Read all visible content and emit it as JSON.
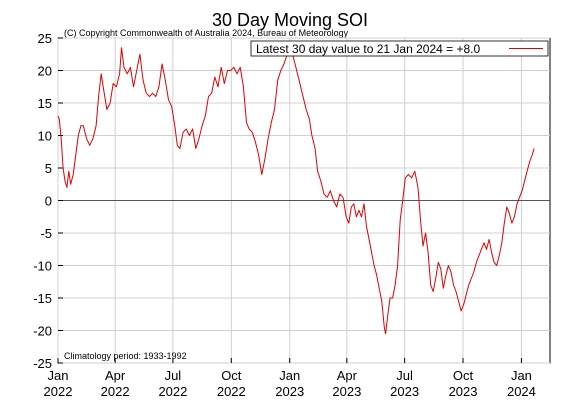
{
  "chart_data": {
    "type": "line",
    "title": "30 Day Moving SOI",
    "copyright": "(C) Copyright Commonwealth of Australia 2024, Bureau of Meteorology",
    "legend_label": "Latest 30 day value to 21 Jan 2024 = +8.0",
    "legend_position": "top-right",
    "footnote": "Climatology period: 1933-1992",
    "grid": true,
    "xlabel": "",
    "ylabel": "",
    "ylim": [
      -25,
      25
    ],
    "yticks": [
      "25",
      "20",
      "15",
      "10",
      "5",
      "0",
      "-5",
      "-10",
      "-15",
      "-20",
      "-25"
    ],
    "xlim": [
      "2022-01-01",
      "2024-02-15"
    ],
    "xticks": [
      {
        "date": "2022-01-01",
        "month": "Jan",
        "year": "2022"
      },
      {
        "date": "2022-04-01",
        "month": "Apr",
        "year": "2022"
      },
      {
        "date": "2022-07-01",
        "month": "Jul",
        "year": "2022"
      },
      {
        "date": "2022-10-01",
        "month": "Oct",
        "year": "2022"
      },
      {
        "date": "2023-01-01",
        "month": "Jan",
        "year": "2023"
      },
      {
        "date": "2023-04-01",
        "month": "Apr",
        "year": "2023"
      },
      {
        "date": "2023-07-01",
        "month": "Jul",
        "year": "2023"
      },
      {
        "date": "2023-10-01",
        "month": "Oct",
        "year": "2023"
      },
      {
        "date": "2024-01-01",
        "month": "Jan",
        "year": "2024"
      }
    ],
    "series": [
      {
        "color": "#e00000",
        "points": [
          [
            "2022-01-01",
            13.0
          ],
          [
            "2022-01-03",
            12.5
          ],
          [
            "2022-01-06",
            9.5
          ],
          [
            "2022-01-09",
            5.0
          ],
          [
            "2022-01-12",
            3.0
          ],
          [
            "2022-01-15",
            2.0
          ],
          [
            "2022-01-18",
            4.5
          ],
          [
            "2022-01-21",
            2.5
          ],
          [
            "2022-01-25",
            4.0
          ],
          [
            "2022-01-29",
            7.0
          ],
          [
            "2022-02-02",
            10.0
          ],
          [
            "2022-02-06",
            11.5
          ],
          [
            "2022-02-10",
            11.5
          ],
          [
            "2022-02-15",
            9.5
          ],
          [
            "2022-02-20",
            8.5
          ],
          [
            "2022-02-25",
            9.5
          ],
          [
            "2022-03-02",
            11.5
          ],
          [
            "2022-03-06",
            16.0
          ],
          [
            "2022-03-10",
            19.5
          ],
          [
            "2022-03-14",
            17.0
          ],
          [
            "2022-03-19",
            14.0
          ],
          [
            "2022-03-24",
            15.0
          ],
          [
            "2022-03-29",
            18.0
          ],
          [
            "2022-04-03",
            17.5
          ],
          [
            "2022-04-08",
            19.5
          ],
          [
            "2022-04-11",
            23.5
          ],
          [
            "2022-04-15",
            20.5
          ],
          [
            "2022-04-20",
            19.5
          ],
          [
            "2022-04-25",
            20.5
          ],
          [
            "2022-04-30",
            17.5
          ],
          [
            "2022-05-05",
            20.0
          ],
          [
            "2022-05-10",
            22.5
          ],
          [
            "2022-05-15",
            18.5
          ],
          [
            "2022-05-20",
            16.5
          ],
          [
            "2022-05-25",
            16.0
          ],
          [
            "2022-05-30",
            16.5
          ],
          [
            "2022-06-04",
            16.0
          ],
          [
            "2022-06-09",
            17.5
          ],
          [
            "2022-06-14",
            21.0
          ],
          [
            "2022-06-19",
            18.5
          ],
          [
            "2022-06-24",
            15.5
          ],
          [
            "2022-06-29",
            14.5
          ],
          [
            "2022-07-04",
            11.5
          ],
          [
            "2022-07-08",
            8.5
          ],
          [
            "2022-07-12",
            8.0
          ],
          [
            "2022-07-17",
            10.5
          ],
          [
            "2022-07-22",
            11.0
          ],
          [
            "2022-07-27",
            10.0
          ],
          [
            "2022-08-01",
            11.0
          ],
          [
            "2022-08-06",
            8.0
          ],
          [
            "2022-08-11",
            9.5
          ],
          [
            "2022-08-16",
            11.5
          ],
          [
            "2022-08-21",
            13.0
          ],
          [
            "2022-08-26",
            16.0
          ],
          [
            "2022-08-31",
            16.5
          ],
          [
            "2022-09-05",
            19.0
          ],
          [
            "2022-09-10",
            17.5
          ],
          [
            "2022-09-15",
            20.5
          ],
          [
            "2022-09-20",
            18.0
          ],
          [
            "2022-09-25",
            20.0
          ],
          [
            "2022-09-30",
            20.0
          ],
          [
            "2022-10-05",
            20.5
          ],
          [
            "2022-10-10",
            19.5
          ],
          [
            "2022-10-15",
            20.5
          ],
          [
            "2022-10-20",
            17.5
          ],
          [
            "2022-10-25",
            12.0
          ],
          [
            "2022-10-29",
            11.0
          ],
          [
            "2022-11-03",
            10.5
          ],
          [
            "2022-11-08",
            9.0
          ],
          [
            "2022-11-13",
            7.0
          ],
          [
            "2022-11-18",
            4.0
          ],
          [
            "2022-11-23",
            6.5
          ],
          [
            "2022-11-28",
            9.5
          ],
          [
            "2022-12-03",
            12.0
          ],
          [
            "2022-12-08",
            14.0
          ],
          [
            "2022-12-13",
            18.5
          ],
          [
            "2022-12-18",
            20.0
          ],
          [
            "2022-12-23",
            21.0
          ],
          [
            "2022-12-28",
            22.5
          ],
          [
            "2023-01-01",
            22.5
          ],
          [
            "2023-01-04",
            23.0
          ],
          [
            "2023-01-08",
            21.5
          ],
          [
            "2023-01-12",
            20.0
          ],
          [
            "2023-01-17",
            18.0
          ],
          [
            "2023-01-22",
            16.0
          ],
          [
            "2023-01-27",
            14.0
          ],
          [
            "2023-02-01",
            12.5
          ],
          [
            "2023-02-05",
            10.0
          ],
          [
            "2023-02-10",
            8.0
          ],
          [
            "2023-02-14",
            4.5
          ],
          [
            "2023-02-19",
            3.0
          ],
          [
            "2023-02-24",
            1.0
          ],
          [
            "2023-03-01",
            0.5
          ],
          [
            "2023-03-06",
            1.5
          ],
          [
            "2023-03-11",
            0.0
          ],
          [
            "2023-03-16",
            -1.0
          ],
          [
            "2023-03-21",
            1.0
          ],
          [
            "2023-03-26",
            0.5
          ],
          [
            "2023-03-31",
            -2.5
          ],
          [
            "2023-04-04",
            -3.5
          ],
          [
            "2023-04-08",
            -1.0
          ],
          [
            "2023-04-12",
            -0.5
          ],
          [
            "2023-04-16",
            -2.5
          ],
          [
            "2023-04-20",
            -1.5
          ],
          [
            "2023-04-24",
            -2.5
          ],
          [
            "2023-04-28",
            -0.5
          ],
          [
            "2023-05-02",
            -4.0
          ],
          [
            "2023-05-06",
            -6.0
          ],
          [
            "2023-05-10",
            -8.0
          ],
          [
            "2023-05-14",
            -10.0
          ],
          [
            "2023-05-18",
            -11.5
          ],
          [
            "2023-05-22",
            -13.5
          ],
          [
            "2023-05-26",
            -15.5
          ],
          [
            "2023-05-30",
            -19.5
          ],
          [
            "2023-06-01",
            -20.5
          ],
          [
            "2023-06-04",
            -18.0
          ],
          [
            "2023-06-08",
            -15.0
          ],
          [
            "2023-06-12",
            -15.0
          ],
          [
            "2023-06-16",
            -13.0
          ],
          [
            "2023-06-20",
            -10.0
          ],
          [
            "2023-06-24",
            -3.0
          ],
          [
            "2023-06-28",
            0.0
          ],
          [
            "2023-07-02",
            3.5
          ],
          [
            "2023-07-07",
            4.0
          ],
          [
            "2023-07-12",
            3.5
          ],
          [
            "2023-07-17",
            4.5
          ],
          [
            "2023-07-22",
            2.0
          ],
          [
            "2023-07-26",
            -3.0
          ],
          [
            "2023-07-30",
            -7.0
          ],
          [
            "2023-08-03",
            -5.0
          ],
          [
            "2023-08-07",
            -8.0
          ],
          [
            "2023-08-11",
            -13.0
          ],
          [
            "2023-08-15",
            -14.0
          ],
          [
            "2023-08-19",
            -12.0
          ],
          [
            "2023-08-23",
            -9.5
          ],
          [
            "2023-08-27",
            -10.5
          ],
          [
            "2023-08-31",
            -13.5
          ],
          [
            "2023-09-04",
            -11.5
          ],
          [
            "2023-09-08",
            -10.0
          ],
          [
            "2023-09-12",
            -11.0
          ],
          [
            "2023-09-16",
            -13.0
          ],
          [
            "2023-09-20",
            -14.0
          ],
          [
            "2023-09-24",
            -15.5
          ],
          [
            "2023-09-28",
            -17.0
          ],
          [
            "2023-10-02",
            -16.0
          ],
          [
            "2023-10-06",
            -14.5
          ],
          [
            "2023-10-10",
            -13.0
          ],
          [
            "2023-10-14",
            -12.0
          ],
          [
            "2023-10-18",
            -11.0
          ],
          [
            "2023-10-22",
            -9.5
          ],
          [
            "2023-10-26",
            -8.5
          ],
          [
            "2023-10-30",
            -7.5
          ],
          [
            "2023-11-03",
            -6.5
          ],
          [
            "2023-11-07",
            -7.5
          ],
          [
            "2023-11-11",
            -6.0
          ],
          [
            "2023-11-15",
            -8.0
          ],
          [
            "2023-11-19",
            -9.5
          ],
          [
            "2023-11-23",
            -10.0
          ],
          [
            "2023-11-27",
            -8.5
          ],
          [
            "2023-12-01",
            -6.5
          ],
          [
            "2023-12-05",
            -3.5
          ],
          [
            "2023-12-09",
            -1.0
          ],
          [
            "2023-12-13",
            -2.0
          ],
          [
            "2023-12-17",
            -3.5
          ],
          [
            "2023-12-21",
            -2.5
          ],
          [
            "2023-12-25",
            -0.5
          ],
          [
            "2023-12-29",
            0.5
          ],
          [
            "2024-01-02",
            1.5
          ],
          [
            "2024-01-06",
            3.0
          ],
          [
            "2024-01-10",
            4.5
          ],
          [
            "2024-01-14",
            6.0
          ],
          [
            "2024-01-18",
            7.0
          ],
          [
            "2024-01-21",
            8.0
          ]
        ]
      }
    ]
  }
}
